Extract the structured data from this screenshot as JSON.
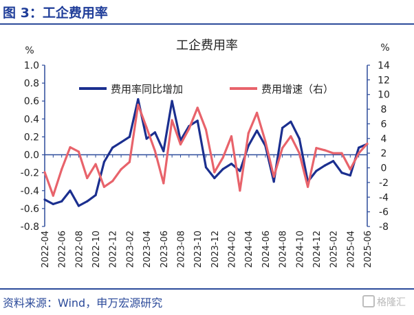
{
  "figure_title": "图 3：工企费用率",
  "source": "资料来源：Wind，申万宏源研究",
  "watermark": "格隆汇",
  "colors": {
    "line1": "#1b2f8f",
    "line2": "#e8636b",
    "axis": "#2b4a9a",
    "text": "#1f3d99"
  },
  "chart_data": {
    "type": "line",
    "title": "工企费用率",
    "ylabel_left": "%",
    "ylabel_right": "%",
    "legend_position": "top",
    "grid": false,
    "categories": [
      "2022-04",
      "2022-05",
      "2022-06",
      "2022-07",
      "2022-08",
      "2022-09",
      "2022-10",
      "2022-11",
      "2022-12",
      "2023-01",
      "2023-02",
      "2023-03",
      "2023-04",
      "2023-05",
      "2023-06",
      "2023-07",
      "2023-08",
      "2023-09",
      "2023-10",
      "2023-11",
      "2023-12",
      "2024-01",
      "2024-02",
      "2024-03",
      "2024-04",
      "2024-05",
      "2024-06",
      "2024-07",
      "2024-08",
      "2024-09",
      "2024-10",
      "2024-11",
      "2024-12",
      "2025-01",
      "2025-02",
      "2025-03",
      "2025-04",
      "2025-05",
      "2025-06"
    ],
    "xtick_labels": [
      "2022-04",
      "2022-06",
      "2022-08",
      "2022-10",
      "2022-12",
      "2023-02",
      "2023-04",
      "2023-06",
      "2023-08",
      "2023-10",
      "2023-12",
      "2024-02",
      "2024-04",
      "2024-06",
      "2024-08",
      "2024-10",
      "2024-12",
      "2025-02",
      "2025-04",
      "2025-06"
    ],
    "ylim_left": [
      -0.8,
      1.0
    ],
    "yticks_left": [
      "-0.8",
      "-0.6",
      "-0.4",
      "-0.2",
      "0.0",
      "0.2",
      "0.4",
      "0.6",
      "0.8",
      "1.0"
    ],
    "ylim_right": [
      -8,
      14
    ],
    "yticks_right": [
      "-8",
      "-6",
      "-4",
      "-2",
      "0",
      "2",
      "4",
      "6",
      "8",
      "10",
      "12",
      "14"
    ],
    "series": [
      {
        "name": "费用率同比增加",
        "axis": "left",
        "color": "#1b2f8f",
        "values": [
          -0.5,
          -0.55,
          -0.52,
          -0.4,
          -0.57,
          -0.52,
          -0.45,
          -0.08,
          0.08,
          0.14,
          0.2,
          0.62,
          0.18,
          0.25,
          0.04,
          0.6,
          0.16,
          0.32,
          0.38,
          -0.14,
          -0.26,
          -0.16,
          -0.1,
          -0.18,
          0.1,
          0.27,
          0.1,
          -0.3,
          0.3,
          0.37,
          0.18,
          -0.3,
          -0.18,
          -0.12,
          -0.07,
          -0.2,
          -0.23,
          0.08,
          0.12
        ]
      },
      {
        "name": "费用增速（右）",
        "axis": "right",
        "color": "#e8636b",
        "values": [
          -0.6,
          -3.8,
          -0.2,
          2.8,
          2.2,
          -1.4,
          0.5,
          -2.6,
          -1.8,
          -0.2,
          0.8,
          8.6,
          5.5,
          2.3,
          -2.1,
          6.5,
          3.2,
          5.3,
          8.2,
          5.2,
          -0.6,
          1.4,
          4.3,
          -3.1,
          4.7,
          7.5,
          3.6,
          -1.2,
          2.7,
          4.3,
          2.0,
          -2.6,
          2.7,
          2.4,
          2.0,
          2.0,
          -0.2,
          2.0,
          3.3
        ]
      }
    ]
  }
}
